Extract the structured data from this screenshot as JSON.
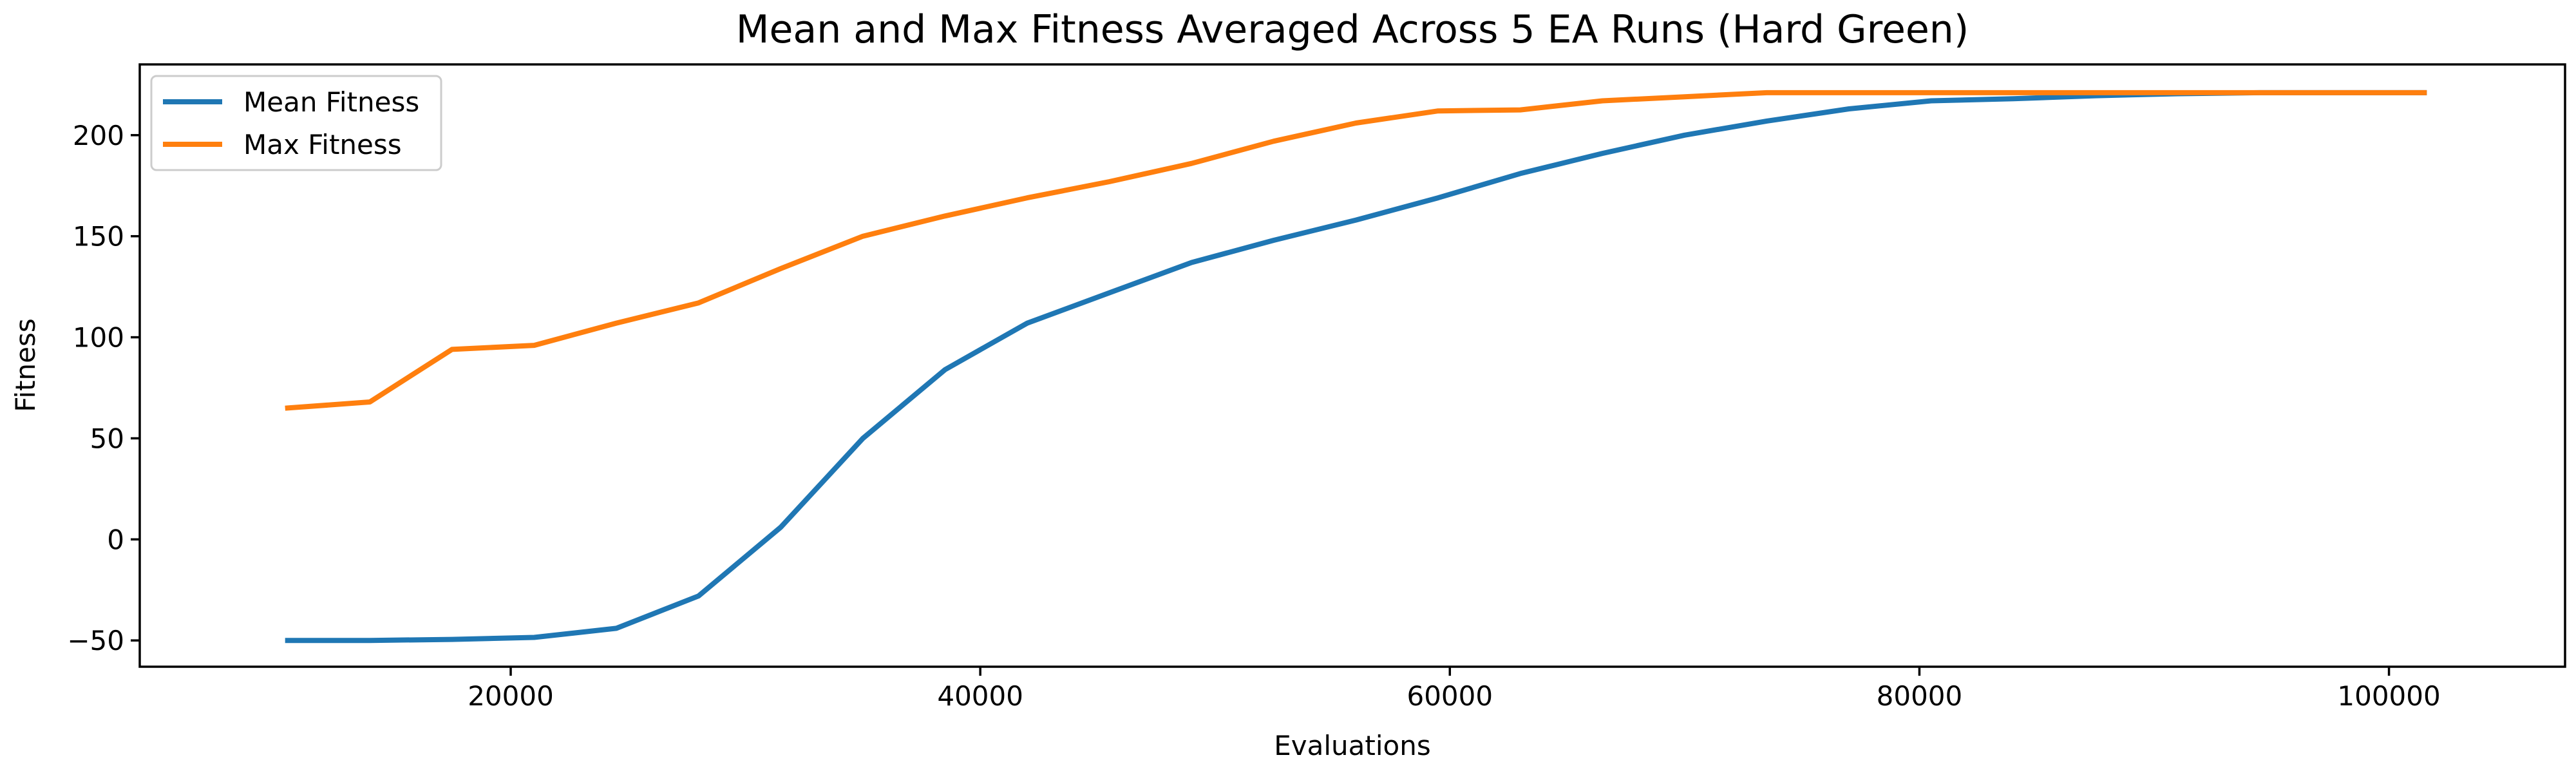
{
  "chart_data": {
    "type": "line",
    "title": "Mean and Max Fitness Averaged Across 5 EA Runs (Hard Green)",
    "xlabel": "Evaluations",
    "ylabel": "Fitness",
    "xlim": [
      4200,
      107500
    ],
    "ylim": [
      -63,
      235
    ],
    "x_ticks": [
      20000,
      40000,
      60000,
      80000,
      100000
    ],
    "y_ticks": [
      -50,
      0,
      50,
      100,
      150,
      200
    ],
    "grid": false,
    "legend_position": "top-left",
    "x": [
      10500,
      14000,
      17500,
      21000,
      24500,
      28000,
      31500,
      35000,
      38500,
      42000,
      45500,
      49000,
      52500,
      56000,
      59500,
      63000,
      66500,
      70000,
      73500,
      77000,
      80500,
      84000,
      87500,
      91000,
      94500,
      98000,
      101500
    ],
    "series": [
      {
        "name": "Mean Fitness",
        "color": "#1f77b4",
        "values": [
          -50,
          -50,
          -49.5,
          -48.5,
          -44,
          -28,
          6,
          50,
          84,
          107,
          122,
          137,
          148,
          158,
          169,
          181,
          191,
          200,
          207,
          213,
          217,
          218,
          219.5,
          220.5,
          221,
          221,
          221
        ]
      },
      {
        "name": "Max Fitness",
        "color": "#ff7f0e",
        "values": [
          65,
          68,
          94,
          96,
          107,
          117,
          134,
          150,
          160,
          169,
          177,
          186,
          197,
          206,
          212,
          212.5,
          217,
          219,
          221,
          221,
          221,
          221,
          221,
          221,
          221,
          221,
          221
        ]
      }
    ]
  }
}
